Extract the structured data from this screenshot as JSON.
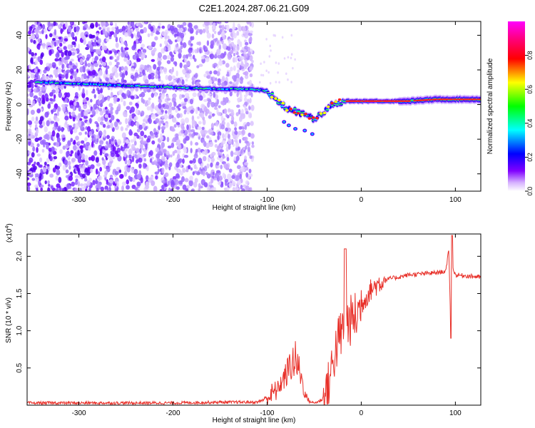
{
  "title": "C2E1.2024.287.06.21.G09",
  "chart_data": [
    {
      "type": "heatmap",
      "xlabel": "Height of straight line (km)",
      "ylabel": "Frequency (Hz)",
      "xlim": [
        -355,
        127
      ],
      "ylim": [
        -50,
        48
      ],
      "xticks": [
        -300,
        -200,
        -100,
        0,
        100
      ],
      "xticklabels": [
        "-300",
        "-200",
        "-100",
        "0",
        "100"
      ],
      "yticks": [
        -40,
        -20,
        0,
        20,
        40
      ],
      "yticklabels": [
        "-40",
        "-20",
        "0",
        "20",
        "40"
      ],
      "colorbar": {
        "label": "Normalized spectral amplitude",
        "range": [
          0,
          1
        ],
        "ticks": [
          0,
          0.2,
          0.4,
          0.6,
          0.8
        ],
        "ticklabels": [
          "0.0",
          "0.2",
          "0.4",
          "0.6",
          "0.8"
        ],
        "colors": [
          "#ffffff",
          "#8000ff",
          "#0000ff",
          "#00ffff",
          "#00ff00",
          "#ffff00",
          "#ff0000",
          "#ff00ff"
        ]
      },
      "noise_region_x": [
        -355,
        -115
      ],
      "tone_track": {
        "x": [
          -345,
          -300,
          -250,
          -200,
          -150,
          -120,
          -100,
          -90,
          -80,
          -70,
          -60,
          -50,
          -40,
          -30,
          -20,
          -10,
          0,
          20,
          50,
          80,
          100,
          127
        ],
        "y": [
          13,
          12,
          11,
          10,
          9,
          9,
          8,
          3,
          -2,
          -4,
          -6,
          -8,
          -4,
          0,
          2,
          2,
          2,
          2,
          2,
          3,
          3,
          3
        ]
      }
    },
    {
      "type": "line",
      "xlabel": "Height of straight line (km)",
      "ylabel": "SNR (10 * v/v)",
      "multiplier_label": "(x10",
      "multiplier_exp": "4",
      "multiplier_close": ")",
      "xlim": [
        -355,
        127
      ],
      "ylim": [
        0,
        2.3
      ],
      "xticks": [
        -300,
        -200,
        -100,
        0,
        100
      ],
      "xticklabels": [
        "-300",
        "-200",
        "-100",
        "0",
        "100"
      ],
      "yticks": [
        0.5,
        1.0,
        1.5,
        2.0
      ],
      "yticklabels": [
        "0.5",
        "1.0",
        "1.5",
        "2.0"
      ],
      "color": "#e8312a",
      "series": [
        {
          "x": [
            -355,
            -300,
            -200,
            -150,
            -110,
            -100,
            -90,
            -80,
            -75,
            -70,
            -65,
            -60,
            -55,
            -50,
            -45,
            -40,
            -35,
            -30,
            -25,
            -20,
            -15,
            -10,
            -5,
            0,
            5,
            10,
            20,
            30,
            40,
            50,
            60,
            70,
            80,
            90,
            93,
            95,
            97,
            100,
            110,
            127
          ],
          "y": [
            0.03,
            0.03,
            0.03,
            0.04,
            0.04,
            0.1,
            0.2,
            0.4,
            0.55,
            0.6,
            0.45,
            0.15,
            0.05,
            0.03,
            0.05,
            0.1,
            0.25,
            0.6,
            0.85,
            1.0,
            1.1,
            1.15,
            1.2,
            1.35,
            1.45,
            1.55,
            1.65,
            1.7,
            1.72,
            1.75,
            1.76,
            1.77,
            1.78,
            1.8,
            2.1,
            1.1,
            1.85,
            1.75,
            1.74,
            1.72
          ]
        }
      ]
    }
  ]
}
